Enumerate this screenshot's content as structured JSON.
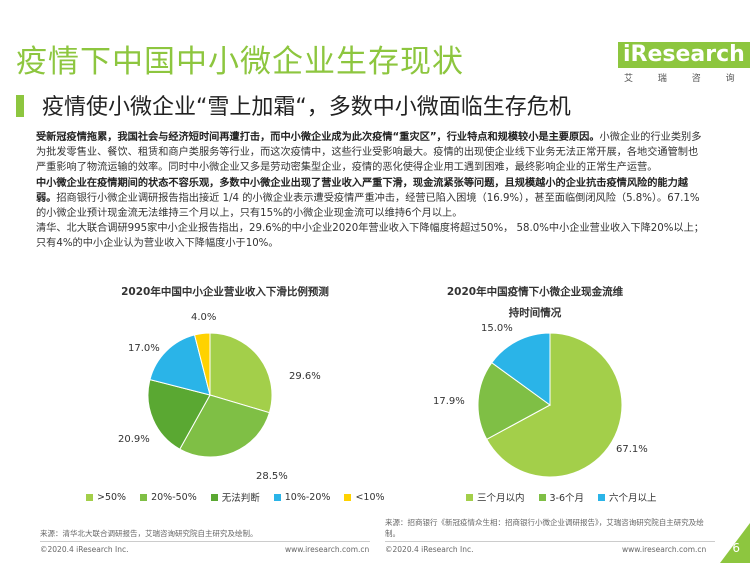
{
  "header": {
    "title": "疫情下中国中小微企业生存现状",
    "subtitle": "疫情使小微企业“雪上加霜“，多数中小微面临生存危机",
    "logo_text": "iResearch",
    "logo_cn": "艾 瑞 咨 询"
  },
  "body": {
    "p1_bold": "受新冠疫情拖累，我国社会与经济短时间再遭打击，而中小微企业成为此次疫情“重灾区”，行业特点和规模较小是主要原因。",
    "p1_rest": "小微企业的行业类别多为批发零售业、餐饮、租赁和商户类服务等行业，而这次疫情中，这些行业受影响最大。疫情的出现使企业线下业务无法正常开展，各地交通管制也严重影响了物流运输的效率。同时中小微企业又多是劳动密集型企业，疫情的恶化使得企业用工遇到困难，最终影响企业的正常生产运营。",
    "p2_bold": "中小微企业在疫情期间的状态不容乐观，多数中小微企业出现了营业收入严重下滑，现金流紧张等问题，且规模越小的企业抗击疫情风险的能力越弱。",
    "p2_rest": "招商银行小微企业调研报告指出接近 1/4 的小微企业表示遭受疫情严重冲击，经营已陷入困境（16.9%），甚至面临倒闭风险（5.8%）。67.1%的小微企业预计现金流无法维持三个月以上，只有15%的小微企业现金流可以维持6个月以上。",
    "p3": "清华、北大联合调研995家中小企业报告指出，29.6%的中小企业2020年营业收入下降幅度将超过50%， 58.0%中小企业营业收入下降20%以上；只有4%的中小企业认为营业收入下降幅度小于10%。"
  },
  "chart_data": [
    {
      "type": "pie",
      "title": "2020年中国中小企业营业收入下滑比例预测",
      "categories": [
        ">50%",
        "20%-50%",
        "无法判断",
        "10%-20%",
        "<10%"
      ],
      "values": [
        29.6,
        28.5,
        20.9,
        17.0,
        4.0
      ],
      "labels": [
        "29.6%",
        "28.5%",
        "20.9%",
        "17.0%",
        "4.0%"
      ],
      "colors": [
        "#a3cf4a",
        "#7fbf45",
        "#5aa832",
        "#2ab4e8",
        "#ffd200"
      ],
      "legend_position": "bottom",
      "source": "来源：清华北大联合调研报告，艾瑞咨询研究院自主研究及绘制。"
    },
    {
      "type": "pie",
      "title_line1": "2020年中国疫情下小微企业现金流维",
      "title_line2": "持时间情况",
      "categories": [
        "三个月以内",
        "3-6个月",
        "六个月以上"
      ],
      "values": [
        67.1,
        17.9,
        15.0
      ],
      "labels": [
        "67.1%",
        "17.9%",
        "15.0%"
      ],
      "colors": [
        "#a3cf4a",
        "#7fbf45",
        "#2ab4e8"
      ],
      "legend_position": "bottom",
      "source": "来源：招商银行《新冠疫情众生相：招商银行小微企业调研报告》，艾瑞咨询研究院自主研究及绘制。"
    }
  ],
  "footer": {
    "left_copyright": "©2020.4 iResearch Inc.",
    "left_url": "www.iresearch.com.cn",
    "right_copyright": "©2020.4 iResearch Inc.",
    "right_url": "www.iresearch.com.cn",
    "page_number": "6"
  }
}
